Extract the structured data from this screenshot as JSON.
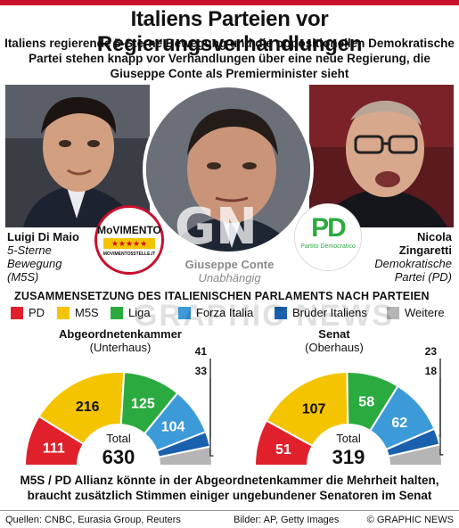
{
  "title": "Italiens Parteien vor Regierungsverhandlungen",
  "subtitle_lines": [
    "Italiens regierende 5-Sterne Bewegung und die oppositionellen Demokratische",
    "Partei stehen knapp vor Verhandlungen über eine neue Regierung, die",
    "Giuseppe Conte als Premierminister sieht"
  ],
  "people": {
    "left": {
      "name": "Luigi Di Maio",
      "party_lines": [
        "5-Sterne",
        "Bewegung",
        "(M5S)"
      ]
    },
    "center": {
      "name": "Giuseppe Conte",
      "party": "Unabhängig"
    },
    "right": {
      "name_lines": [
        "Nicola",
        "Zingaretti"
      ],
      "party_lines": [
        "Demokratische",
        "Partei (PD)"
      ]
    }
  },
  "logos": {
    "m5s_text": "MoVIMENTO",
    "m5s_url": "MOVIMENTO5STELLE.IT",
    "pd_text": "PD",
    "pd_sub": "Partito Democratico"
  },
  "section_heading": "ZUSAMMENSETZUNG DES ITALIENISCHEN PARLAMENTS NACH PARTEIEN",
  "legend": [
    {
      "label": "PD",
      "color": "#e0202b"
    },
    {
      "label": "M5S",
      "color": "#f5c400"
    },
    {
      "label": "Liga",
      "color": "#2bab3f"
    },
    {
      "label": "Forza Italia",
      "color": "#3c9ad8"
    },
    {
      "label": "Brüder Italiens",
      "color": "#1a60ad"
    },
    {
      "label": "Weitere",
      "color": "#b5b5b5"
    }
  ],
  "chart_data": [
    {
      "type": "pie",
      "variant": "semicircle",
      "title": "Abgeordnetenkammer",
      "subtitle": "(Unterhaus)",
      "categories": [
        "PD",
        "M5S",
        "Liga",
        "Forza Italia",
        "Brüder Italiens",
        "Weitere"
      ],
      "values": [
        111,
        216,
        125,
        104,
        33,
        41
      ],
      "value_labels": [
        "111",
        "216",
        "125",
        "104",
        "33",
        "41"
      ],
      "total_label": "Total",
      "total": "630"
    },
    {
      "type": "pie",
      "variant": "semicircle",
      "title": "Senat",
      "subtitle": "(Oberhaus)",
      "categories": [
        "PD",
        "M5S",
        "Liga",
        "Forza Italia",
        "Brüder Italiens",
        "Weitere"
      ],
      "values": [
        51,
        107,
        58,
        62,
        18,
        23
      ],
      "value_labels": [
        "51",
        "107",
        "58",
        "62",
        "18",
        "23"
      ],
      "total_label": "Total",
      "total": "319"
    }
  ],
  "footnote_lines": [
    "M5S / PD Allianz könnte in der Abgeordnetenkammer die Mehrheit halten,",
    "braucht zusätzlich Stimmen einiger ungebundener Senatoren im Senat"
  ],
  "footer": {
    "sources": "Quellen: CNBC, Eurasia Group, Reuters",
    "images": "Bilder: AP, Getty Images",
    "copyright": "© GRAPHIC NEWS"
  },
  "watermark": "GRAPHIC NEWS",
  "gn_logo": "GN"
}
